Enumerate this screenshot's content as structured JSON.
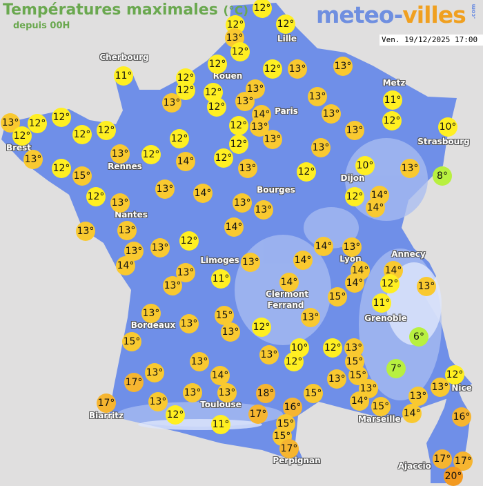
{
  "header": {
    "title": "Températures maximales",
    "title_unit": "(°C)",
    "subtitle": "depuis 00H",
    "logo_part1": "meteo-",
    "logo_part2": "villes",
    "logo_suffix": ".com",
    "timestamp": "Ven. 19/12/2025 17:00"
  },
  "colors": {
    "sea": "#e0dfdf",
    "land": "#6f8fe8",
    "land_relief": "#a9bdf2",
    "cold": "#b8f040",
    "cool": "#ffef22",
    "mild": "#f9c930",
    "warm": "#f6b530",
    "hot": "#f39a20"
  },
  "cities": [
    "Cherbourg",
    "Lille",
    "Rouen",
    "Paris",
    "Metz",
    "Strasbourg",
    "Brest",
    "Rennes",
    "Nantes",
    "Bourges",
    "Dijon",
    "Limoges",
    "Annecy",
    "Lyon",
    "Clermont",
    "Ferrand",
    "Grenoble",
    "Bordeaux",
    "Toulouse",
    "Biarritz",
    "Marseille",
    "Nice",
    "Perpignan",
    "Ajaccio"
  ],
  "temperatures": [
    12,
    12,
    13,
    12,
    12,
    12,
    12,
    13,
    13,
    11,
    12,
    12,
    13,
    12,
    12,
    13,
    13,
    14,
    13,
    13,
    12,
    12,
    13,
    13,
    13,
    11,
    12,
    10,
    13,
    12,
    12,
    12,
    12,
    12,
    13,
    12,
    15,
    13,
    12,
    12,
    14,
    12,
    13,
    13,
    12,
    10,
    13,
    8,
    12,
    14,
    14,
    12,
    13,
    13,
    13,
    13,
    14,
    13,
    13,
    14,
    12,
    13,
    13,
    14,
    13,
    11,
    13,
    13,
    14,
    13,
    14,
    14,
    14,
    14,
    12,
    13,
    14,
    15,
    11,
    13,
    12,
    10,
    12,
    12,
    13,
    15,
    15,
    13,
    13,
    14,
    15,
    6,
    7,
    12,
    13,
    13,
    14,
    16,
    13,
    13,
    15,
    13,
    15,
    13,
    13,
    13,
    17,
    14,
    17,
    13,
    13,
    13,
    12,
    11,
    18,
    17,
    16,
    15,
    15,
    15,
    17,
    17,
    17,
    20
  ]
}
